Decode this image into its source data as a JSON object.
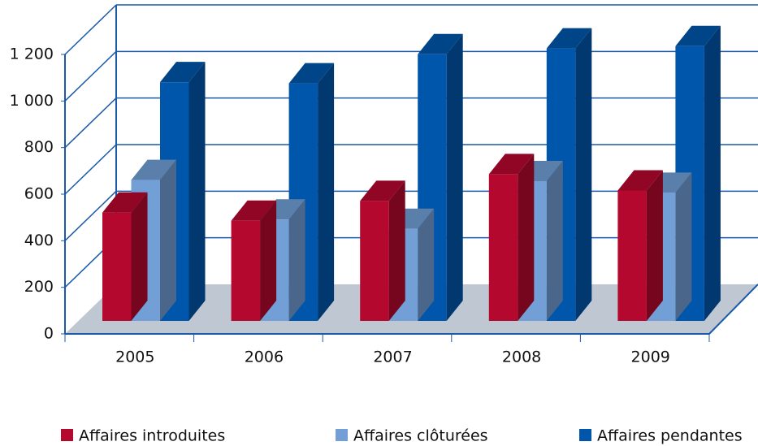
{
  "chart_data": {
    "type": "bar3d",
    "categories": [
      "2005",
      "2006",
      "2007",
      "2008",
      "2009"
    ],
    "series": [
      {
        "name": "Affaires introduites",
        "color": "#b5082e",
        "values": [
          465,
          430,
          515,
          630,
          560
        ]
      },
      {
        "name": "Affaires clôturées",
        "color": "#729fd6",
        "values": [
          605,
          435,
          395,
          600,
          550
        ]
      },
      {
        "name": "Affaires pendantes",
        "color": "#0056aa",
        "values": [
          1025,
          1020,
          1145,
          1170,
          1180
        ]
      }
    ],
    "ylim": [
      0,
      1200
    ],
    "yticks": [
      0,
      200,
      400,
      600,
      800,
      {
        "value": 1000,
        "label": "1 000"
      },
      {
        "value": 1200,
        "label": "1 200"
      }
    ],
    "grid": true,
    "legend": "bottom"
  }
}
